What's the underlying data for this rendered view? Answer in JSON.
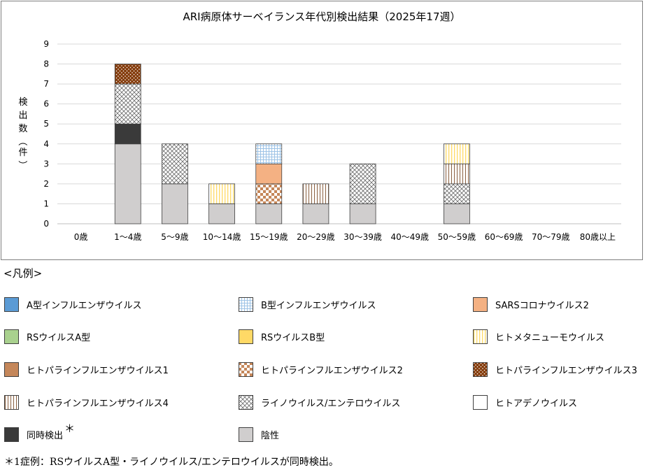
{
  "colors": {
    "flu_a": "#5b9bd5",
    "flu_b_bg": "#ffffff",
    "flu_b_fg": "#9dc3e6",
    "sars_cov_2": "#f4b183",
    "rsv_a": "#a9d18e",
    "rsv_b": "#ffd966",
    "hmpv_bg": "#ffffff",
    "hmpv_fg": "#ffd966",
    "hpiv1": "#c5875a",
    "hpiv2_bg": "#ffffff",
    "hpiv2_fg": "#c5875a",
    "hpiv3_bg": "#843c0c",
    "hpiv3_fg": "#ffffff",
    "hpiv4_bg": "#ffffff",
    "hpiv4_fg": "#8a6040",
    "rhino_entero_bg": "#ffffff",
    "rhino_entero_fg": "#6b6b6b",
    "adeno": "#ffffff",
    "coinfection": "#3a3a3a",
    "negative": "#d0cece",
    "gridline": "#d9d9d9",
    "frame": "#7f7f7f"
  },
  "chart_data": {
    "type": "bar",
    "stacked": true,
    "title": "ARI病原体サーベイランス年代別検出結果（2025年17週）",
    "ylabel": "検出数（件）",
    "xlabel": "",
    "ylim": [
      0,
      9
    ],
    "yticks": [
      "0",
      "1",
      "2",
      "3",
      "4",
      "5",
      "6",
      "7",
      "8",
      "9"
    ],
    "grid": true,
    "legend_position": "bottom",
    "categories": [
      "0歳",
      "1〜4歳",
      "5〜9歳",
      "10〜14歳",
      "15〜19歳",
      "20〜29歳",
      "30〜39歳",
      "40〜49歳",
      "50〜59歳",
      "60〜69歳",
      "70〜79歳",
      "80歳以上"
    ],
    "series": [
      {
        "name": "陰性",
        "key": "negative",
        "values": [
          0,
          4,
          2,
          1,
          1,
          1,
          1,
          0,
          1,
          0,
          0,
          0
        ]
      },
      {
        "name": "同時検出",
        "key": "coinfection",
        "values": [
          0,
          1,
          0,
          0,
          0,
          0,
          0,
          0,
          0,
          0,
          0,
          0
        ]
      },
      {
        "name": "ライノウイルス/エンテロウイルス",
        "key": "rhino_entero",
        "values": [
          0,
          2,
          2,
          0,
          0,
          0,
          2,
          0,
          1,
          0,
          0,
          0
        ]
      },
      {
        "name": "ヒトパラインフルエンザウイルス2",
        "key": "hpiv2",
        "values": [
          0,
          0,
          0,
          0,
          1,
          0,
          0,
          0,
          0,
          0,
          0,
          0
        ]
      },
      {
        "name": "SARSコロナウイルス2",
        "key": "sars_cov_2",
        "values": [
          0,
          0,
          0,
          0,
          1,
          0,
          0,
          0,
          0,
          0,
          0,
          0
        ]
      },
      {
        "name": "B型インフルエンザウイルス",
        "key": "flu_b",
        "values": [
          0,
          0,
          0,
          0,
          1,
          0,
          0,
          0,
          0,
          0,
          0,
          0
        ]
      },
      {
        "name": "ヒトパラインフルエンザウイルス4",
        "key": "hpiv4",
        "values": [
          0,
          0,
          0,
          0,
          0,
          1,
          0,
          0,
          1,
          0,
          0,
          0
        ]
      },
      {
        "name": "ヒトメタニューモウイルス",
        "key": "hmpv",
        "values": [
          0,
          0,
          0,
          1,
          0,
          0,
          0,
          0,
          1,
          0,
          0,
          0
        ]
      },
      {
        "name": "ヒトパラインフルエンザウイルス3",
        "key": "hpiv3",
        "values": [
          0,
          1,
          0,
          0,
          0,
          0,
          0,
          0,
          0,
          0,
          0,
          0
        ]
      }
    ]
  },
  "legend": {
    "heading": "<凡例>",
    "items": [
      {
        "key": "flu_a",
        "label": "A型インフルエンザウイルス"
      },
      {
        "key": "flu_b",
        "label": "B型インフルエンザウイルス"
      },
      {
        "key": "sars_cov_2",
        "label": "SARSコロナウイルス2"
      },
      {
        "key": "rsv_a",
        "label": "RSウイルスA型"
      },
      {
        "key": "rsv_b",
        "label": "RSウイルスB型"
      },
      {
        "key": "hmpv",
        "label": "ヒトメタニューモウイルス"
      },
      {
        "key": "hpiv1",
        "label": "ヒトパラインフルエンザウイルス1"
      },
      {
        "key": "hpiv2",
        "label": "ヒトパラインフルエンザウイルス2"
      },
      {
        "key": "hpiv3",
        "label": "ヒトパラインフルエンザウイルス3"
      },
      {
        "key": "hpiv4",
        "label": "ヒトパラインフルエンザウイルス4"
      },
      {
        "key": "rhino_entero",
        "label": "ライノウイルス/エンテロウイルス"
      },
      {
        "key": "adeno",
        "label": "ヒトアデノウイルス"
      },
      {
        "key": "coinfection",
        "label": "同時検出",
        "mark": "＊"
      },
      {
        "key": "negative",
        "label": "陰性"
      }
    ]
  },
  "footnote": "＊1症例：RSウイルスA型・ライノウイルス/エンテロウイルスが同時検出。"
}
